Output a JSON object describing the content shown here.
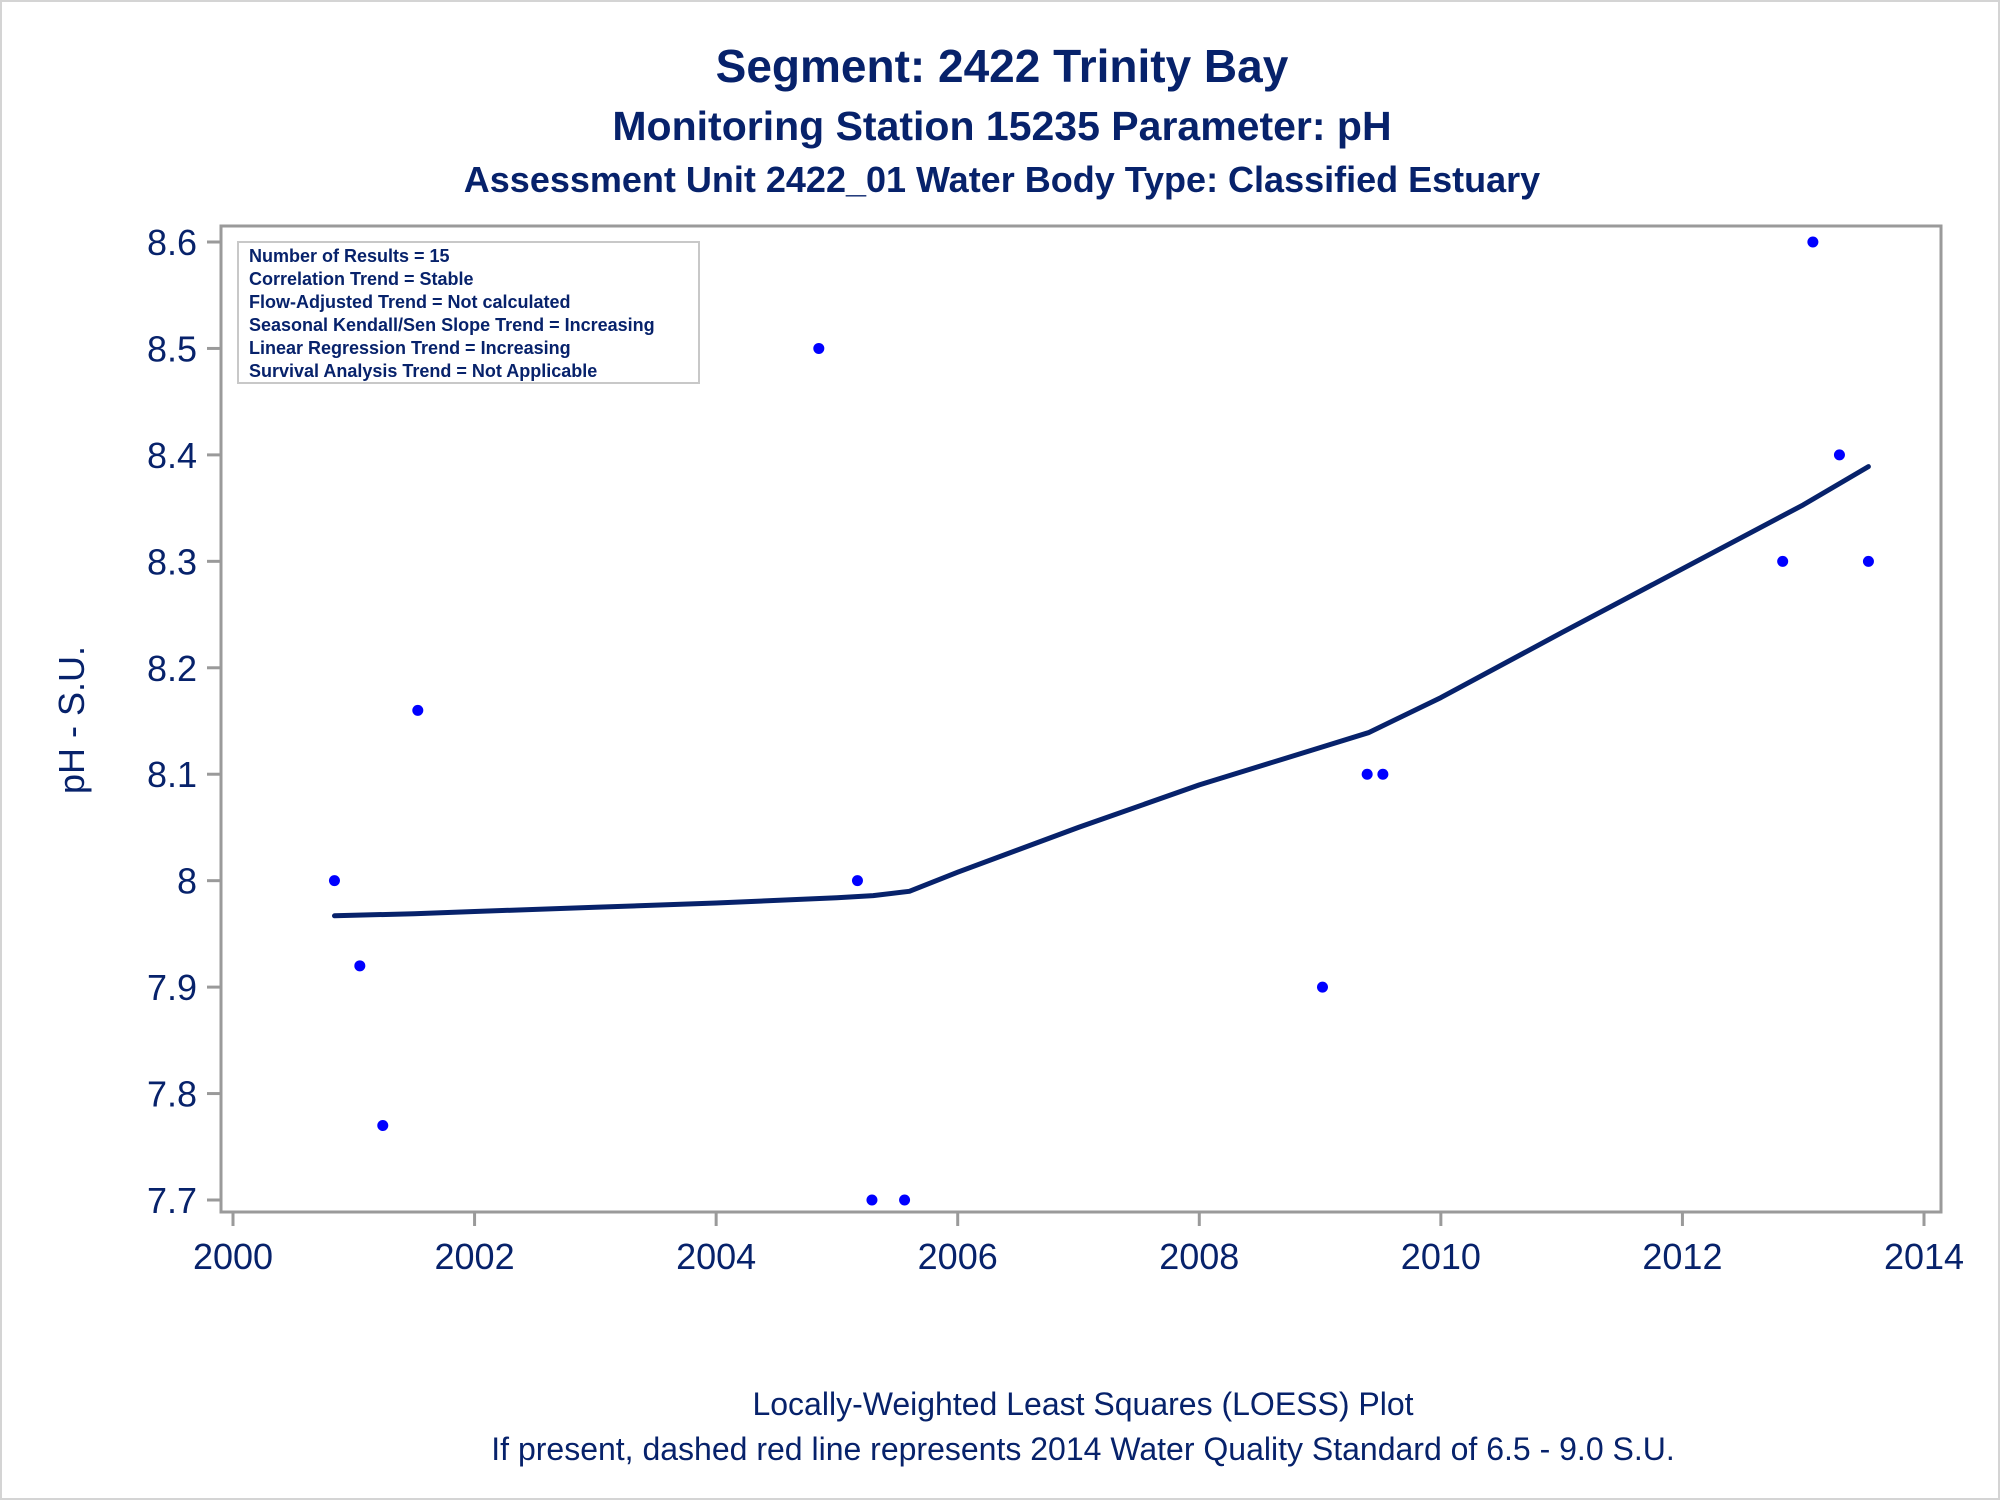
{
  "title": "Segment: 2422  Trinity Bay",
  "subtitle1": "Monitoring Station 15235 Parameter: pH",
  "subtitle2": "Assessment Unit 2422_01   Water Body Type: Classified Estuary",
  "footnote1": "Locally-Weighted Least Squares (LOESS) Plot",
  "footnote2": "If present, dashed red line represents 2014 Water Quality Standard of 6.5 - 9.0 S.U.",
  "stats_box": [
    "Number of Results = 15",
    "Correlation Trend = Stable",
    "Flow-Adjusted Trend = Not calculated",
    "Seasonal Kendall/Sen Slope Trend = Increasing",
    "Linear Regression Trend = Increasing",
    "Survival Analysis Trend = Not Applicable"
  ],
  "colors": {
    "text": "#07226b",
    "points": "#0000ff",
    "loess_line": "#07226b",
    "axis": "#9a9a9a"
  },
  "chart_data": {
    "type": "scatter",
    "title": "Segment: 2422  Trinity Bay",
    "xlabel": "",
    "ylabel": "pH - S.U.",
    "xlim": [
      2000,
      2014
    ],
    "ylim": [
      7.69,
      8.62
    ],
    "xticks": [
      2000,
      2002,
      2004,
      2006,
      2008,
      2010,
      2012,
      2014
    ],
    "yticks": [
      7.7,
      7.8,
      7.9,
      8,
      8.1,
      8.2,
      8.3,
      8.4,
      8.5,
      8.6
    ],
    "ytick_labels": [
      "7.7",
      "7.8",
      "7.9",
      "8",
      "8.1",
      "8.2",
      "8.3",
      "8.4",
      "8.5",
      "8.6"
    ],
    "grid": false,
    "legend": "top-left",
    "points": [
      {
        "x": 2000.84,
        "y": 8.0
      },
      {
        "x": 2001.05,
        "y": 7.92
      },
      {
        "x": 2001.24,
        "y": 7.77
      },
      {
        "x": 2001.53,
        "y": 8.16
      },
      {
        "x": 2004.85,
        "y": 8.5
      },
      {
        "x": 2005.17,
        "y": 8.0
      },
      {
        "x": 2005.29,
        "y": 7.7
      },
      {
        "x": 2005.56,
        "y": 7.7
      },
      {
        "x": 2009.02,
        "y": 7.9
      },
      {
        "x": 2009.39,
        "y": 8.1
      },
      {
        "x": 2009.52,
        "y": 8.1
      },
      {
        "x": 2012.83,
        "y": 8.3
      },
      {
        "x": 2013.08,
        "y": 8.6
      },
      {
        "x": 2013.3,
        "y": 8.4
      },
      {
        "x": 2013.54,
        "y": 8.3
      }
    ],
    "loess": {
      "x": [
        2000.84,
        2001.5,
        2002,
        2003,
        2004,
        2005,
        2005.3,
        2005.6,
        2006,
        2007,
        2008,
        2009,
        2009.4,
        2010,
        2011,
        2012,
        2013,
        2013.54
      ],
      "y": [
        7.967,
        7.969,
        7.971,
        7.975,
        7.979,
        7.984,
        7.986,
        7.99,
        8.008,
        8.05,
        8.09,
        8.125,
        8.139,
        8.172,
        8.233,
        8.293,
        8.353,
        8.389
      ]
    }
  }
}
